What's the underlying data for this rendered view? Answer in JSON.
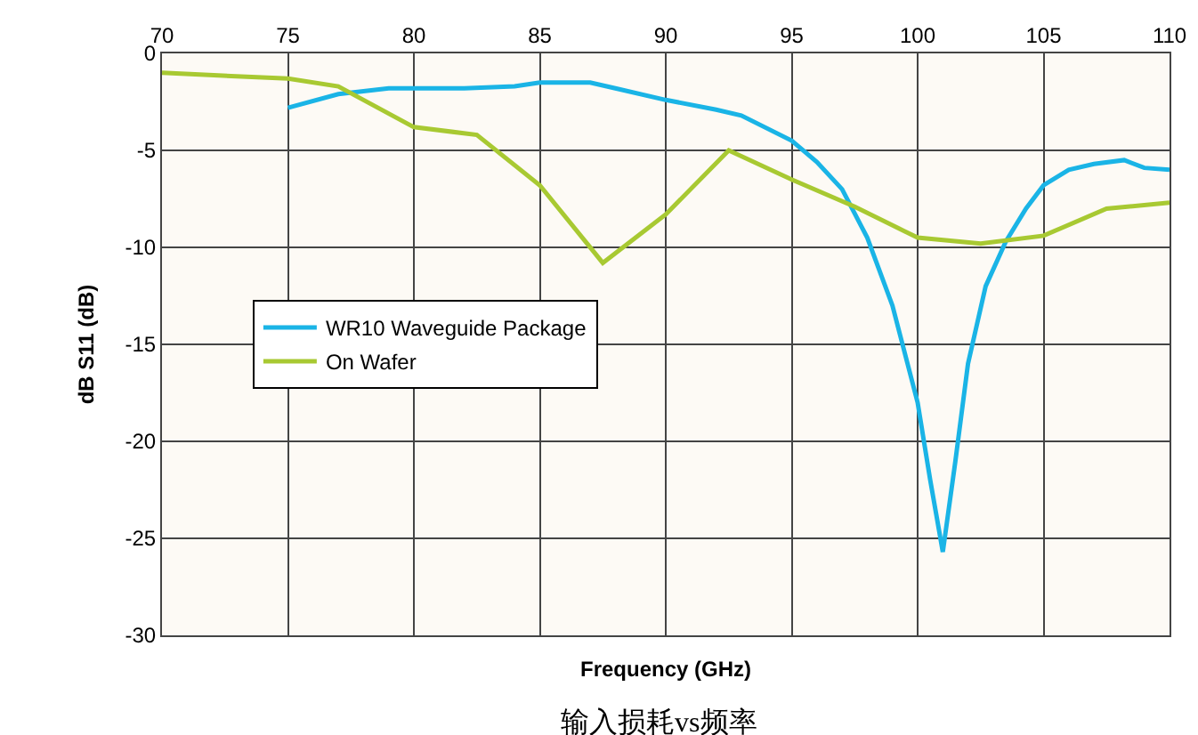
{
  "chart_data": {
    "type": "line",
    "title": "输入损耗vs频率",
    "xlabel": "Frequency (GHz)",
    "ylabel": "dB S11 (dB)",
    "xlim": [
      70,
      110
    ],
    "xticks": [
      70,
      75,
      80,
      85,
      90,
      95,
      100,
      105,
      110
    ],
    "ylim": [
      -30,
      0
    ],
    "yticks": [
      -30,
      -25,
      -20,
      -15,
      -10,
      -5,
      0
    ],
    "grid": true,
    "legend": "left",
    "marker": "none",
    "line_style": "solid",
    "series": [
      {
        "name": "WR10 Waveguide Package",
        "color": "#1ab4e6",
        "x": [
          75,
          77,
          79,
          82,
          84,
          85,
          87,
          88,
          90,
          92,
          93,
          95,
          96,
          97,
          98,
          99,
          100,
          100.5,
          101,
          101.5,
          102,
          102.7,
          103.5,
          104.3,
          105,
          106,
          107,
          108.2,
          109,
          110
        ],
        "values": [
          -2.8,
          -2.1,
          -1.8,
          -1.8,
          -1.7,
          -1.5,
          -1.5,
          -1.8,
          -2.4,
          -2.9,
          -3.2,
          -4.5,
          -5.6,
          -7,
          -9.5,
          -13,
          -18,
          -22,
          -25.7,
          -21,
          -16,
          -12,
          -9.7,
          -8,
          -6.8,
          -6,
          -5.7,
          -5.5,
          -5.9,
          -6
        ]
      },
      {
        "name": "On Wafer",
        "color": "#a8c932",
        "x": [
          70,
          75,
          77,
          80,
          82.5,
          85,
          87.5,
          90,
          92.5,
          95,
          97.5,
          100,
          102.5,
          105,
          107.5,
          110
        ],
        "values": [
          -1,
          -1.3,
          -1.7,
          -3.8,
          -4.2,
          -6.8,
          -10.8,
          -8.3,
          -5,
          -6.5,
          -7.9,
          -9.5,
          -9.8,
          -9.4,
          -8,
          -7.7
        ]
      }
    ]
  }
}
